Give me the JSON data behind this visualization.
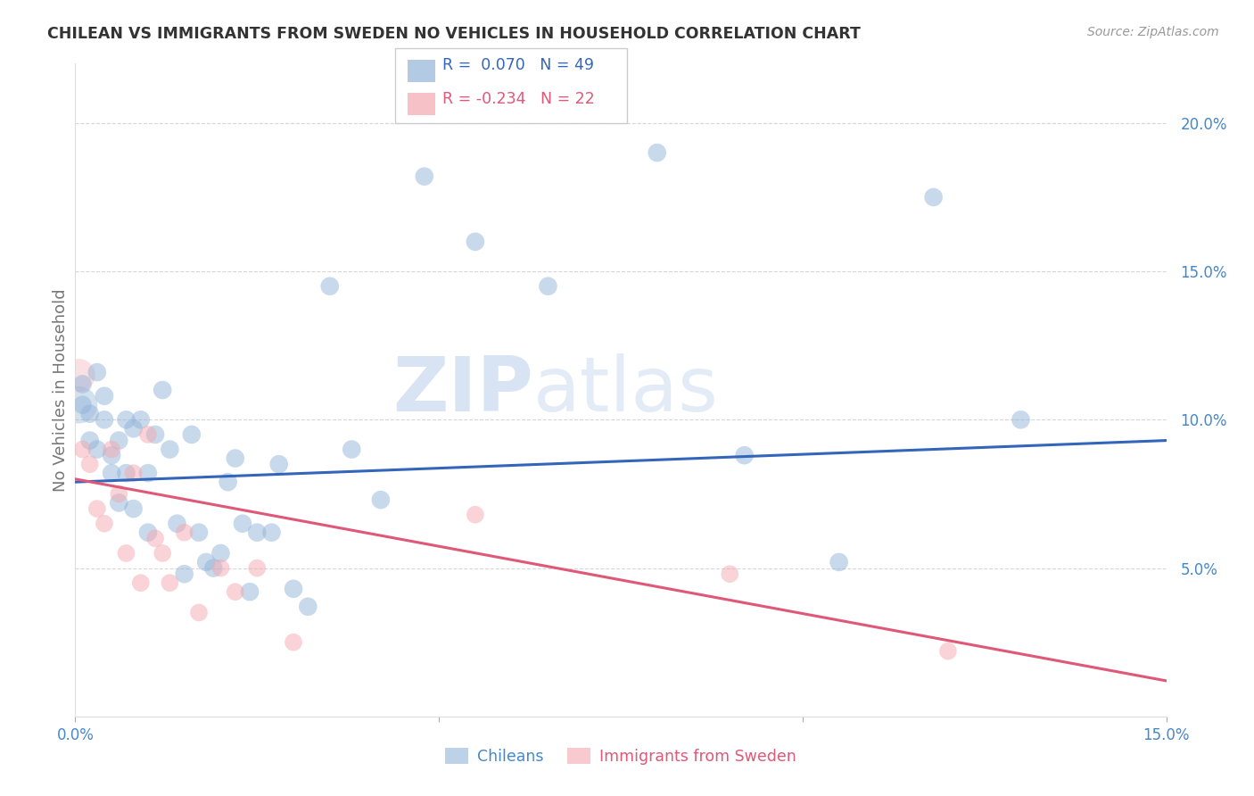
{
  "title": "CHILEAN VS IMMIGRANTS FROM SWEDEN NO VEHICLES IN HOUSEHOLD CORRELATION CHART",
  "source": "Source: ZipAtlas.com",
  "ylabel": "No Vehicles in Household",
  "legend_blue_r": "R =  0.070",
  "legend_blue_n": "N = 49",
  "legend_pink_r": "R = -0.234",
  "legend_pink_n": "N = 22",
  "legend_label1": "Chileans",
  "legend_label2": "Immigrants from Sweden",
  "watermark": "ZIPatlas",
  "xlim": [
    0.0,
    0.15
  ],
  "ylim": [
    0.0,
    0.22
  ],
  "yticks": [
    0.05,
    0.1,
    0.15,
    0.2
  ],
  "ytick_labels": [
    "5.0%",
    "10.0%",
    "15.0%",
    "20.0%"
  ],
  "xticks": [
    0.0,
    0.05,
    0.1,
    0.15
  ],
  "xtick_labels": [
    "0.0%",
    "",
    "",
    "15.0%"
  ],
  "blue_color": "#92b4d8",
  "pink_color": "#f4a8b0",
  "blue_line_color": "#3366bb",
  "pink_line_color": "#e05878",
  "blue_points_x": [
    0.001,
    0.001,
    0.002,
    0.002,
    0.003,
    0.003,
    0.004,
    0.004,
    0.005,
    0.005,
    0.006,
    0.006,
    0.007,
    0.007,
    0.008,
    0.008,
    0.009,
    0.01,
    0.01,
    0.011,
    0.012,
    0.013,
    0.014,
    0.015,
    0.016,
    0.017,
    0.018,
    0.019,
    0.02,
    0.021,
    0.022,
    0.023,
    0.024,
    0.025,
    0.027,
    0.028,
    0.03,
    0.032,
    0.035,
    0.038,
    0.042,
    0.048,
    0.055,
    0.065,
    0.08,
    0.092,
    0.105,
    0.118,
    0.13
  ],
  "blue_points_y": [
    0.105,
    0.112,
    0.093,
    0.102,
    0.116,
    0.09,
    0.108,
    0.1,
    0.088,
    0.082,
    0.093,
    0.072,
    0.1,
    0.082,
    0.097,
    0.07,
    0.1,
    0.082,
    0.062,
    0.095,
    0.11,
    0.09,
    0.065,
    0.048,
    0.095,
    0.062,
    0.052,
    0.05,
    0.055,
    0.079,
    0.087,
    0.065,
    0.042,
    0.062,
    0.062,
    0.085,
    0.043,
    0.037,
    0.145,
    0.09,
    0.073,
    0.182,
    0.16,
    0.145,
    0.19,
    0.088,
    0.052,
    0.175,
    0.1
  ],
  "pink_points_x": [
    0.001,
    0.002,
    0.003,
    0.004,
    0.005,
    0.006,
    0.007,
    0.008,
    0.009,
    0.01,
    0.011,
    0.012,
    0.013,
    0.015,
    0.017,
    0.02,
    0.022,
    0.025,
    0.03,
    0.055,
    0.09,
    0.12
  ],
  "pink_points_y": [
    0.09,
    0.085,
    0.07,
    0.065,
    0.09,
    0.075,
    0.055,
    0.082,
    0.045,
    0.095,
    0.06,
    0.055,
    0.045,
    0.062,
    0.035,
    0.05,
    0.042,
    0.05,
    0.025,
    0.068,
    0.048,
    0.022
  ],
  "grid_color": "#cccccc",
  "background_color": "#ffffff",
  "title_color": "#333333",
  "axis_color": "#4488cc",
  "watermark_color": "#ddeeff"
}
